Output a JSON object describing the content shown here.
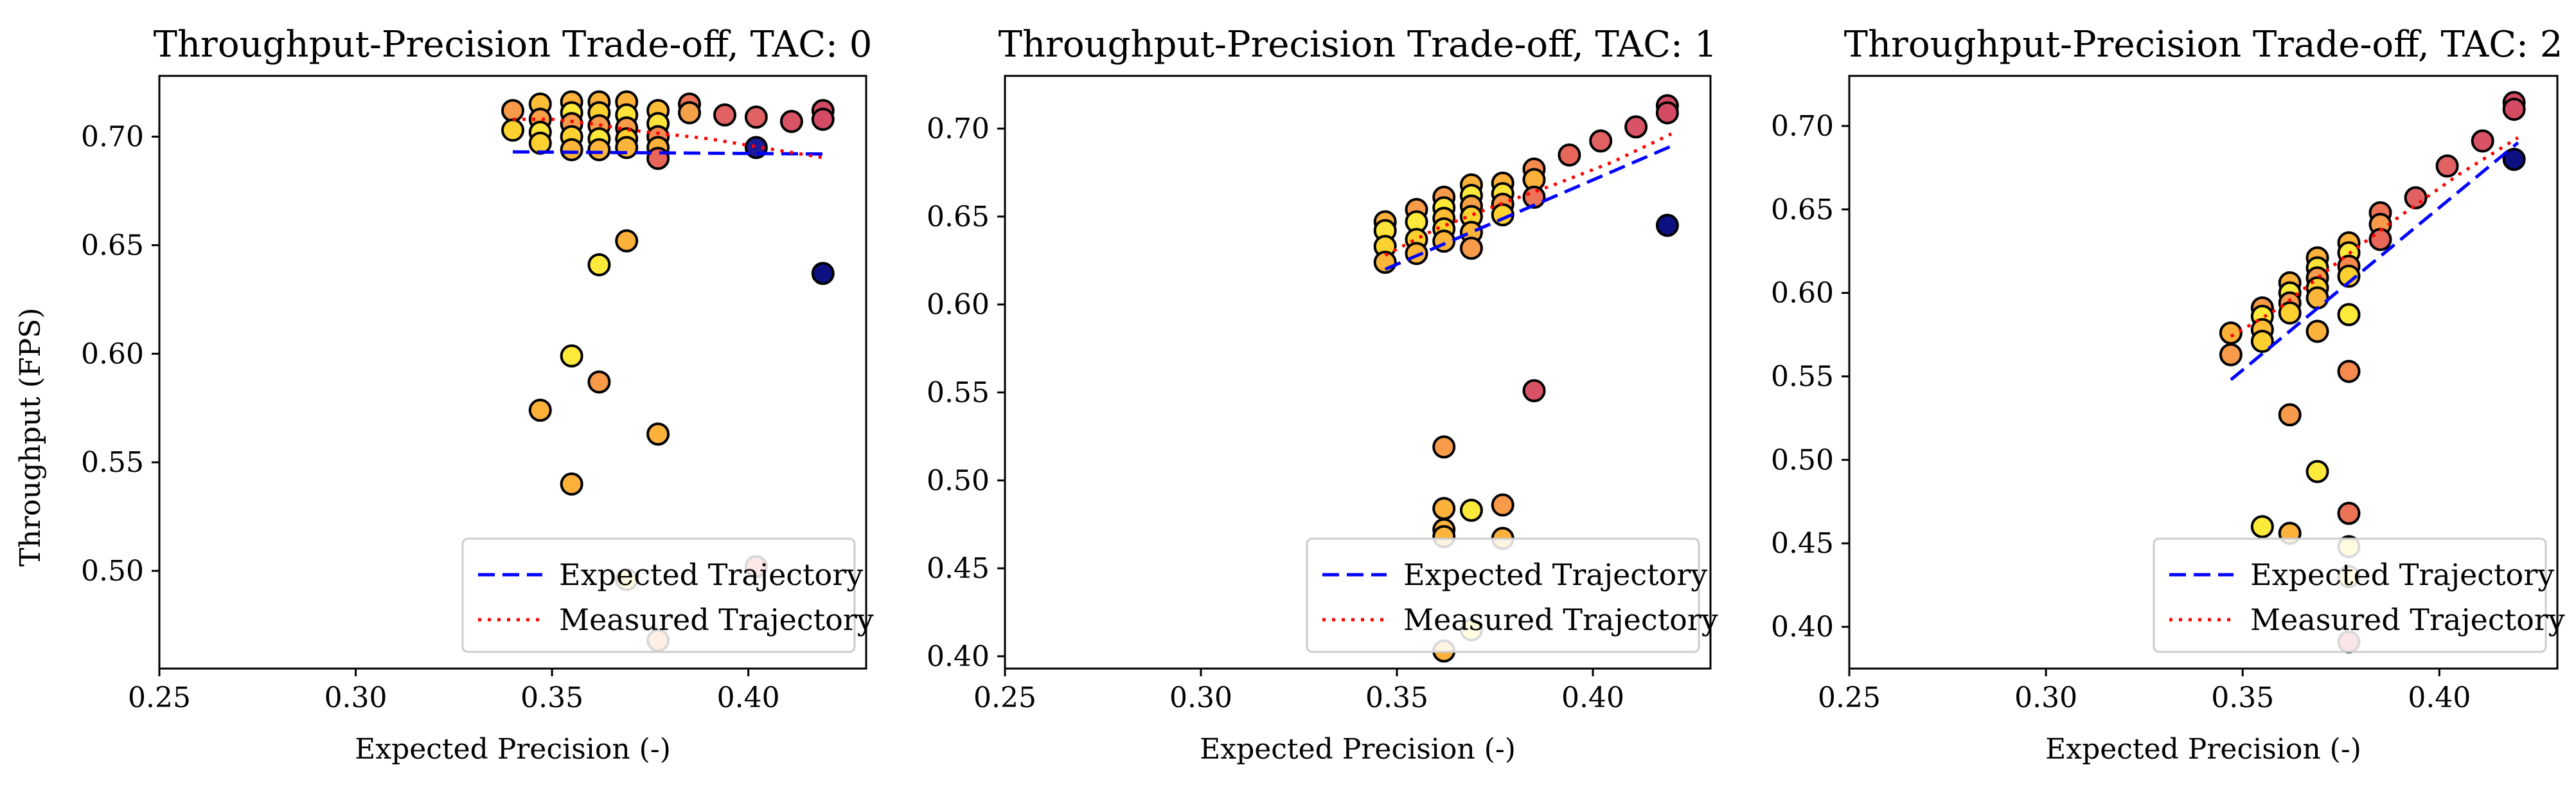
{
  "figure": {
    "ylabel": "Throughput (FPS)",
    "legend": {
      "expected": "Expected Trajectory",
      "measured": "Measured Trajectory",
      "placement": "lower-right"
    }
  },
  "chart_data": [
    {
      "type": "scatter",
      "title": "Throughput-Precision Trade-off, TAC: 0",
      "xlabel": "Expected Precision (-)",
      "ylabel": "Throughput (FPS)",
      "xlim": [
        0.25,
        0.43
      ],
      "ylim": [
        0.455,
        0.728
      ],
      "xticks": [
        0.25,
        0.3,
        0.35,
        0.4
      ],
      "yticks": [
        0.5,
        0.55,
        0.6,
        0.65,
        0.7
      ],
      "grid": false,
      "legend_placement": "lower-right",
      "points": [
        {
          "x": 0.34,
          "y": 0.712,
          "c": "#f79a4a"
        },
        {
          "x": 0.34,
          "y": 0.703,
          "c": "#fdd230"
        },
        {
          "x": 0.347,
          "y": 0.715,
          "c": "#fdbd36"
        },
        {
          "x": 0.347,
          "y": 0.708,
          "c": "#f7a046"
        },
        {
          "x": 0.347,
          "y": 0.702,
          "c": "#fde33a"
        },
        {
          "x": 0.347,
          "y": 0.697,
          "c": "#fcd02f"
        },
        {
          "x": 0.355,
          "y": 0.716,
          "c": "#fbb13a"
        },
        {
          "x": 0.355,
          "y": 0.711,
          "c": "#fde93a"
        },
        {
          "x": 0.355,
          "y": 0.706,
          "c": "#f79a4a"
        },
        {
          "x": 0.355,
          "y": 0.7,
          "c": "#fdd230"
        },
        {
          "x": 0.355,
          "y": 0.694,
          "c": "#fbb53a"
        },
        {
          "x": 0.362,
          "y": 0.716,
          "c": "#fbb13a"
        },
        {
          "x": 0.362,
          "y": 0.711,
          "c": "#fdd230"
        },
        {
          "x": 0.362,
          "y": 0.705,
          "c": "#f79a4a"
        },
        {
          "x": 0.362,
          "y": 0.699,
          "c": "#fde93a"
        },
        {
          "x": 0.362,
          "y": 0.694,
          "c": "#fbb53a"
        },
        {
          "x": 0.369,
          "y": 0.716,
          "c": "#fbb13a"
        },
        {
          "x": 0.369,
          "y": 0.71,
          "c": "#fde33a"
        },
        {
          "x": 0.369,
          "y": 0.704,
          "c": "#f79a4a"
        },
        {
          "x": 0.369,
          "y": 0.699,
          "c": "#fcd02f"
        },
        {
          "x": 0.369,
          "y": 0.695,
          "c": "#fbb53a"
        },
        {
          "x": 0.377,
          "y": 0.712,
          "c": "#fdbd36"
        },
        {
          "x": 0.377,
          "y": 0.706,
          "c": "#fde33a"
        },
        {
          "x": 0.377,
          "y": 0.7,
          "c": "#f6894e"
        },
        {
          "x": 0.377,
          "y": 0.695,
          "c": "#fbb13a"
        },
        {
          "x": 0.377,
          "y": 0.69,
          "c": "#e8655a"
        },
        {
          "x": 0.385,
          "y": 0.715,
          "c": "#ec7355"
        },
        {
          "x": 0.385,
          "y": 0.711,
          "c": "#f4a24a"
        },
        {
          "x": 0.394,
          "y": 0.71,
          "c": "#e26264"
        },
        {
          "x": 0.402,
          "y": 0.709,
          "c": "#e26264"
        },
        {
          "x": 0.411,
          "y": 0.707,
          "c": "#d95366"
        },
        {
          "x": 0.419,
          "y": 0.712,
          "c": "#d44b66"
        },
        {
          "x": 0.419,
          "y": 0.708,
          "c": "#d44b66"
        },
        {
          "x": 0.402,
          "y": 0.695,
          "c": "#1a1a9a"
        },
        {
          "x": 0.419,
          "y": 0.637,
          "c": "#0d1080"
        },
        {
          "x": 0.362,
          "y": 0.641,
          "c": "#fde93a"
        },
        {
          "x": 0.369,
          "y": 0.652,
          "c": "#fbb13a"
        },
        {
          "x": 0.355,
          "y": 0.599,
          "c": "#fde93a"
        },
        {
          "x": 0.362,
          "y": 0.587,
          "c": "#f79a4a"
        },
        {
          "x": 0.347,
          "y": 0.574,
          "c": "#fbb13a"
        },
        {
          "x": 0.377,
          "y": 0.563,
          "c": "#fbb13a"
        },
        {
          "x": 0.355,
          "y": 0.54,
          "c": "#fbb13a"
        },
        {
          "x": 0.369,
          "y": 0.496,
          "c": "#fde93a"
        },
        {
          "x": 0.402,
          "y": 0.502,
          "c": "#e26264"
        },
        {
          "x": 0.377,
          "y": 0.468,
          "c": "#f79a4a"
        }
      ],
      "series": [
        {
          "name": "Expected Trajectory",
          "style": "dashed",
          "color": "#0000ff",
          "x": [
            0.34,
            0.42
          ],
          "y": [
            0.693,
            0.692
          ]
        },
        {
          "name": "Measured Trajectory",
          "style": "dotted",
          "color": "#ff0000",
          "x": [
            0.34,
            0.35,
            0.36,
            0.37,
            0.38,
            0.39,
            0.4,
            0.41,
            0.42
          ],
          "y": [
            0.708,
            0.708,
            0.706,
            0.703,
            0.701,
            0.699,
            0.696,
            0.693,
            0.69
          ]
        }
      ]
    },
    {
      "type": "scatter",
      "title": "Throughput-Precision Trade-off, TAC: 1",
      "xlabel": "Expected Precision (-)",
      "ylabel": "",
      "xlim": [
        0.25,
        0.43
      ],
      "ylim": [
        0.393,
        0.73
      ],
      "xticks": [
        0.25,
        0.3,
        0.35,
        0.4
      ],
      "yticks": [
        0.4,
        0.45,
        0.5,
        0.55,
        0.6,
        0.65,
        0.7
      ],
      "grid": false,
      "legend_placement": "lower-right",
      "points": [
        {
          "x": 0.347,
          "y": 0.647,
          "c": "#fbb13a"
        },
        {
          "x": 0.347,
          "y": 0.642,
          "c": "#fde33a"
        },
        {
          "x": 0.347,
          "y": 0.633,
          "c": "#fdd230"
        },
        {
          "x": 0.347,
          "y": 0.624,
          "c": "#fbb53a"
        },
        {
          "x": 0.355,
          "y": 0.654,
          "c": "#f79a4a"
        },
        {
          "x": 0.355,
          "y": 0.647,
          "c": "#fde93a"
        },
        {
          "x": 0.355,
          "y": 0.637,
          "c": "#fcd02f"
        },
        {
          "x": 0.355,
          "y": 0.629,
          "c": "#fbb53a"
        },
        {
          "x": 0.362,
          "y": 0.661,
          "c": "#f79a4a"
        },
        {
          "x": 0.362,
          "y": 0.655,
          "c": "#fde93a"
        },
        {
          "x": 0.362,
          "y": 0.649,
          "c": "#fdbd36"
        },
        {
          "x": 0.362,
          "y": 0.643,
          "c": "#fcd02f"
        },
        {
          "x": 0.362,
          "y": 0.636,
          "c": "#fbb53a"
        },
        {
          "x": 0.369,
          "y": 0.668,
          "c": "#fbb13a"
        },
        {
          "x": 0.369,
          "y": 0.662,
          "c": "#fde93a"
        },
        {
          "x": 0.369,
          "y": 0.656,
          "c": "#f7a046"
        },
        {
          "x": 0.369,
          "y": 0.65,
          "c": "#fdd230"
        },
        {
          "x": 0.369,
          "y": 0.641,
          "c": "#fbb53a"
        },
        {
          "x": 0.369,
          "y": 0.632,
          "c": "#f79a4a"
        },
        {
          "x": 0.377,
          "y": 0.669,
          "c": "#fbb13a"
        },
        {
          "x": 0.377,
          "y": 0.663,
          "c": "#fde33a"
        },
        {
          "x": 0.377,
          "y": 0.657,
          "c": "#f79a4a"
        },
        {
          "x": 0.377,
          "y": 0.651,
          "c": "#fdd230"
        },
        {
          "x": 0.385,
          "y": 0.677,
          "c": "#f6894e"
        },
        {
          "x": 0.385,
          "y": 0.671,
          "c": "#fbb13a"
        },
        {
          "x": 0.385,
          "y": 0.661,
          "c": "#ec7355"
        },
        {
          "x": 0.394,
          "y": 0.685,
          "c": "#e8655a"
        },
        {
          "x": 0.402,
          "y": 0.693,
          "c": "#e26264"
        },
        {
          "x": 0.411,
          "y": 0.701,
          "c": "#d95366"
        },
        {
          "x": 0.419,
          "y": 0.713,
          "c": "#d44b66"
        },
        {
          "x": 0.419,
          "y": 0.709,
          "c": "#d44b66"
        },
        {
          "x": 0.419,
          "y": 0.645,
          "c": "#0d1080"
        },
        {
          "x": 0.385,
          "y": 0.551,
          "c": "#d95366"
        },
        {
          "x": 0.362,
          "y": 0.519,
          "c": "#f79a4a"
        },
        {
          "x": 0.362,
          "y": 0.484,
          "c": "#fbb13a"
        },
        {
          "x": 0.369,
          "y": 0.483,
          "c": "#fde93a"
        },
        {
          "x": 0.377,
          "y": 0.486,
          "c": "#f79a4a"
        },
        {
          "x": 0.362,
          "y": 0.472,
          "c": "#fbb13a"
        },
        {
          "x": 0.362,
          "y": 0.468,
          "c": "#fbb53a"
        },
        {
          "x": 0.377,
          "y": 0.467,
          "c": "#fbb13a"
        },
        {
          "x": 0.369,
          "y": 0.415,
          "c": "#fde93a"
        },
        {
          "x": 0.362,
          "y": 0.403,
          "c": "#fbb13a"
        }
      ],
      "series": [
        {
          "name": "Expected Trajectory",
          "style": "dashed",
          "color": "#0000ff",
          "x": [
            0.347,
            0.42
          ],
          "y": [
            0.62,
            0.69
          ]
        },
        {
          "name": "Measured Trajectory",
          "style": "dotted",
          "color": "#ff0000",
          "x": [
            0.347,
            0.36,
            0.375,
            0.39,
            0.405,
            0.42
          ],
          "y": [
            0.628,
            0.643,
            0.656,
            0.668,
            0.681,
            0.697
          ]
        }
      ]
    },
    {
      "type": "scatter",
      "title": "Throughput-Precision Trade-off, TAC: 2",
      "xlabel": "Expected Precision (-)",
      "ylabel": "",
      "xlim": [
        0.25,
        0.43
      ],
      "ylim": [
        0.375,
        0.73
      ],
      "xticks": [
        0.25,
        0.3,
        0.35,
        0.4
      ],
      "yticks": [
        0.4,
        0.45,
        0.5,
        0.55,
        0.6,
        0.65,
        0.7
      ],
      "grid": false,
      "legend_placement": "lower-right",
      "points": [
        {
          "x": 0.347,
          "y": 0.576,
          "c": "#fbb13a"
        },
        {
          "x": 0.347,
          "y": 0.563,
          "c": "#f79a4a"
        },
        {
          "x": 0.355,
          "y": 0.591,
          "c": "#f79a4a"
        },
        {
          "x": 0.355,
          "y": 0.586,
          "c": "#fde93a"
        },
        {
          "x": 0.355,
          "y": 0.578,
          "c": "#fdbd36"
        },
        {
          "x": 0.355,
          "y": 0.571,
          "c": "#fcd02f"
        },
        {
          "x": 0.362,
          "y": 0.606,
          "c": "#fbb13a"
        },
        {
          "x": 0.362,
          "y": 0.6,
          "c": "#fde93a"
        },
        {
          "x": 0.362,
          "y": 0.594,
          "c": "#f79a4a"
        },
        {
          "x": 0.362,
          "y": 0.588,
          "c": "#fcd02f"
        },
        {
          "x": 0.369,
          "y": 0.621,
          "c": "#fbb13a"
        },
        {
          "x": 0.369,
          "y": 0.615,
          "c": "#fde33a"
        },
        {
          "x": 0.369,
          "y": 0.609,
          "c": "#f79a4a"
        },
        {
          "x": 0.369,
          "y": 0.603,
          "c": "#fdd230"
        },
        {
          "x": 0.369,
          "y": 0.597,
          "c": "#fbb53a"
        },
        {
          "x": 0.377,
          "y": 0.63,
          "c": "#fbb13a"
        },
        {
          "x": 0.377,
          "y": 0.624,
          "c": "#fde93a"
        },
        {
          "x": 0.377,
          "y": 0.616,
          "c": "#f6894e"
        },
        {
          "x": 0.377,
          "y": 0.61,
          "c": "#fcd02f"
        },
        {
          "x": 0.385,
          "y": 0.648,
          "c": "#ec7355"
        },
        {
          "x": 0.385,
          "y": 0.641,
          "c": "#f79a4a"
        },
        {
          "x": 0.385,
          "y": 0.632,
          "c": "#e8655a"
        },
        {
          "x": 0.394,
          "y": 0.657,
          "c": "#e26264"
        },
        {
          "x": 0.402,
          "y": 0.676,
          "c": "#e26264"
        },
        {
          "x": 0.411,
          "y": 0.691,
          "c": "#d95366"
        },
        {
          "x": 0.419,
          "y": 0.714,
          "c": "#d44b66"
        },
        {
          "x": 0.419,
          "y": 0.71,
          "c": "#d44b66"
        },
        {
          "x": 0.419,
          "y": 0.68,
          "c": "#0d1080"
        },
        {
          "x": 0.369,
          "y": 0.577,
          "c": "#fbb13a"
        },
        {
          "x": 0.377,
          "y": 0.587,
          "c": "#fde93a"
        },
        {
          "x": 0.377,
          "y": 0.553,
          "c": "#f6894e"
        },
        {
          "x": 0.362,
          "y": 0.527,
          "c": "#f79a4a"
        },
        {
          "x": 0.369,
          "y": 0.493,
          "c": "#fde93a"
        },
        {
          "x": 0.377,
          "y": 0.468,
          "c": "#ec7355"
        },
        {
          "x": 0.355,
          "y": 0.46,
          "c": "#fde93a"
        },
        {
          "x": 0.362,
          "y": 0.456,
          "c": "#fbb13a"
        },
        {
          "x": 0.377,
          "y": 0.448,
          "c": "#fde93a"
        },
        {
          "x": 0.377,
          "y": 0.43,
          "c": "#fde93a"
        },
        {
          "x": 0.377,
          "y": 0.391,
          "c": "#d95366"
        }
      ],
      "series": [
        {
          "name": "Expected Trajectory",
          "style": "dashed",
          "color": "#0000ff",
          "x": [
            0.347,
            0.42
          ],
          "y": [
            0.548,
            0.69
          ]
        },
        {
          "name": "Measured Trajectory",
          "style": "dotted",
          "color": "#ff0000",
          "x": [
            0.347,
            0.36,
            0.375,
            0.39,
            0.405,
            0.42
          ],
          "y": [
            0.574,
            0.592,
            0.62,
            0.646,
            0.671,
            0.693
          ]
        }
      ]
    }
  ]
}
